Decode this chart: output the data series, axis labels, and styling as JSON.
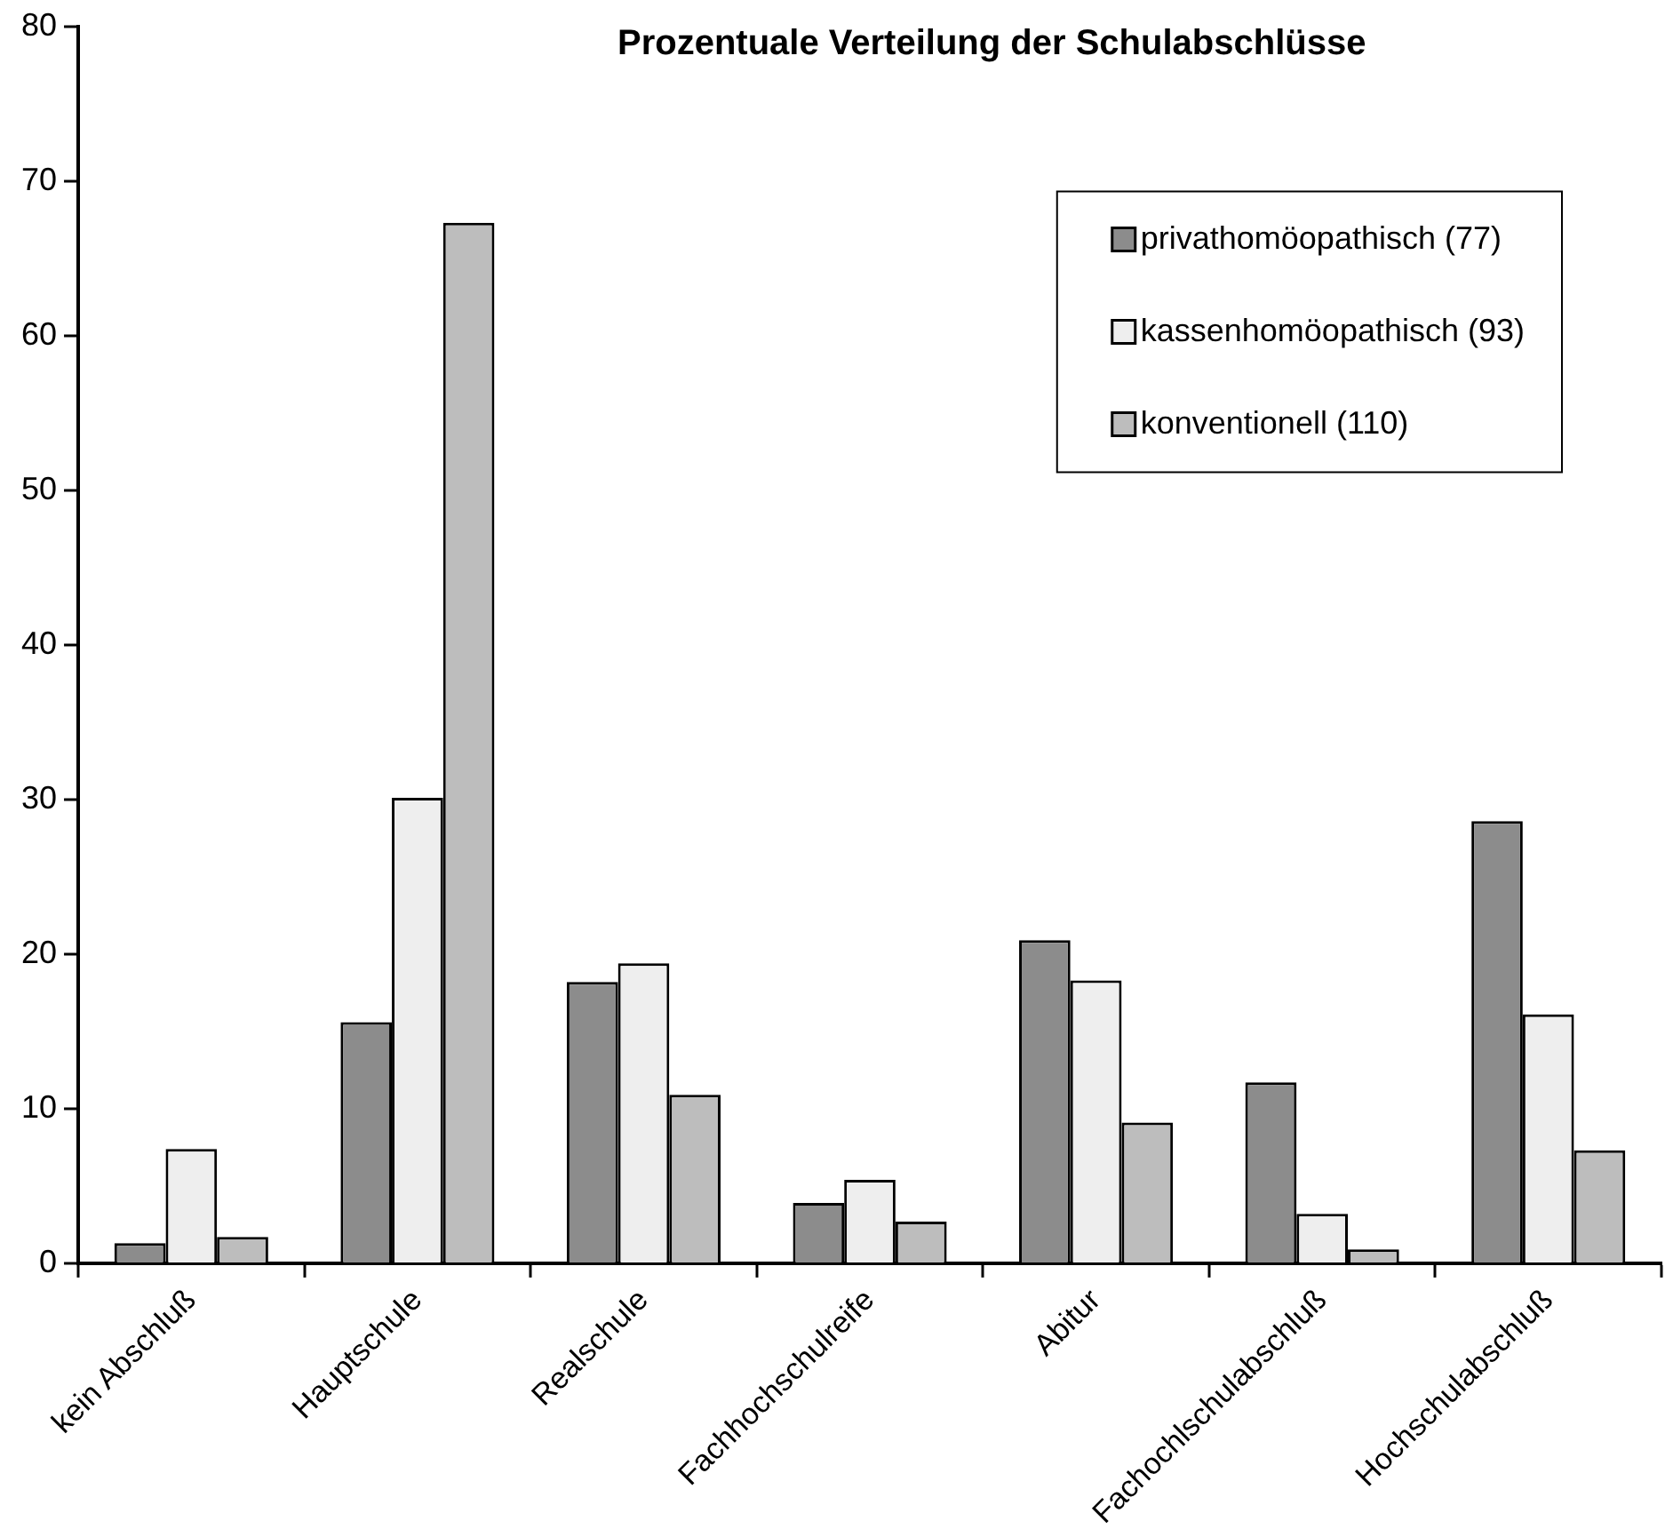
{
  "chart_data": {
    "type": "bar",
    "title": "Prozentuale Verteilung der Schulabschlüsse",
    "categories": [
      "kein Abschluß",
      "Hauptschule",
      "Realschule",
      "Fachhochschulreife",
      "Abitur",
      "Fachochlschulabschluß",
      "Hochschulabschluß"
    ],
    "series": [
      {
        "name": "privathomöopathisch (77)",
        "color": "#8c8c8c",
        "values": [
          1.3,
          15.6,
          18.2,
          3.9,
          20.9,
          11.7,
          28.6
        ]
      },
      {
        "name": "kassenhomöopathisch (93)",
        "color": "#eeeeee",
        "values": [
          7.4,
          30.1,
          19.4,
          5.4,
          18.3,
          3.2,
          16.1
        ]
      },
      {
        "name": "konventionell (110)",
        "color": "#bdbdbd",
        "values": [
          1.7,
          67.3,
          10.9,
          2.7,
          9.1,
          0.9,
          7.3
        ]
      }
    ],
    "ylim": [
      0,
      80
    ],
    "yticks": [
      0,
      10,
      20,
      30,
      40,
      50,
      60,
      70,
      80
    ],
    "grid": false,
    "legend": "top right"
  }
}
